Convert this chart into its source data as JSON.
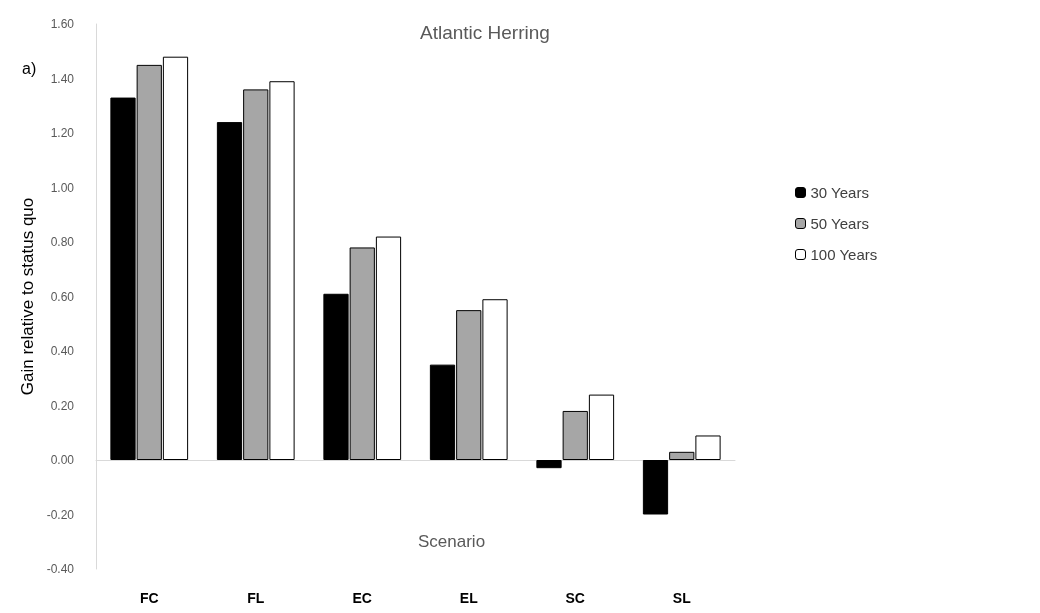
{
  "chart_data": {
    "type": "bar",
    "title": "Atlantic Herring",
    "xlabel": "Scenario",
    "ylabel": "Gain relative to status quo",
    "annotations": [
      "a)"
    ],
    "categories": [
      "FC",
      "FL",
      "EC",
      "EL",
      "SC",
      "SL"
    ],
    "series": [
      {
        "name": "30 Years",
        "color": "#000000",
        "values": [
          1.33,
          1.24,
          0.61,
          0.35,
          -0.03,
          -0.2
        ]
      },
      {
        "name": "50 Years",
        "color": "#a6a6a6",
        "values": [
          1.45,
          1.36,
          0.78,
          0.55,
          0.18,
          0.03
        ]
      },
      {
        "name": "100 Years",
        "color": "#ffffff",
        "values": [
          1.48,
          1.39,
          0.82,
          0.59,
          0.24,
          0.09
        ]
      }
    ],
    "ylim": [
      -0.4,
      1.6
    ],
    "yticks": [
      {
        "value": -0.4,
        "label": "-0.40"
      },
      {
        "value": -0.2,
        "label": "-0.20"
      },
      {
        "value": 0,
        "label": "0.00"
      },
      {
        "value": 0.2,
        "label": "0.20"
      },
      {
        "value": 0.4,
        "label": "0.40"
      },
      {
        "value": 0.6,
        "label": "0.60"
      },
      {
        "value": 0.8,
        "label": "0.80"
      },
      {
        "value": 1.0,
        "label": "1.00"
      },
      {
        "value": 1.2,
        "label": "1.20"
      },
      {
        "value": 1.4,
        "label": "1.40"
      },
      {
        "value": 1.6,
        "label": "1.60"
      }
    ],
    "legend": "right"
  }
}
